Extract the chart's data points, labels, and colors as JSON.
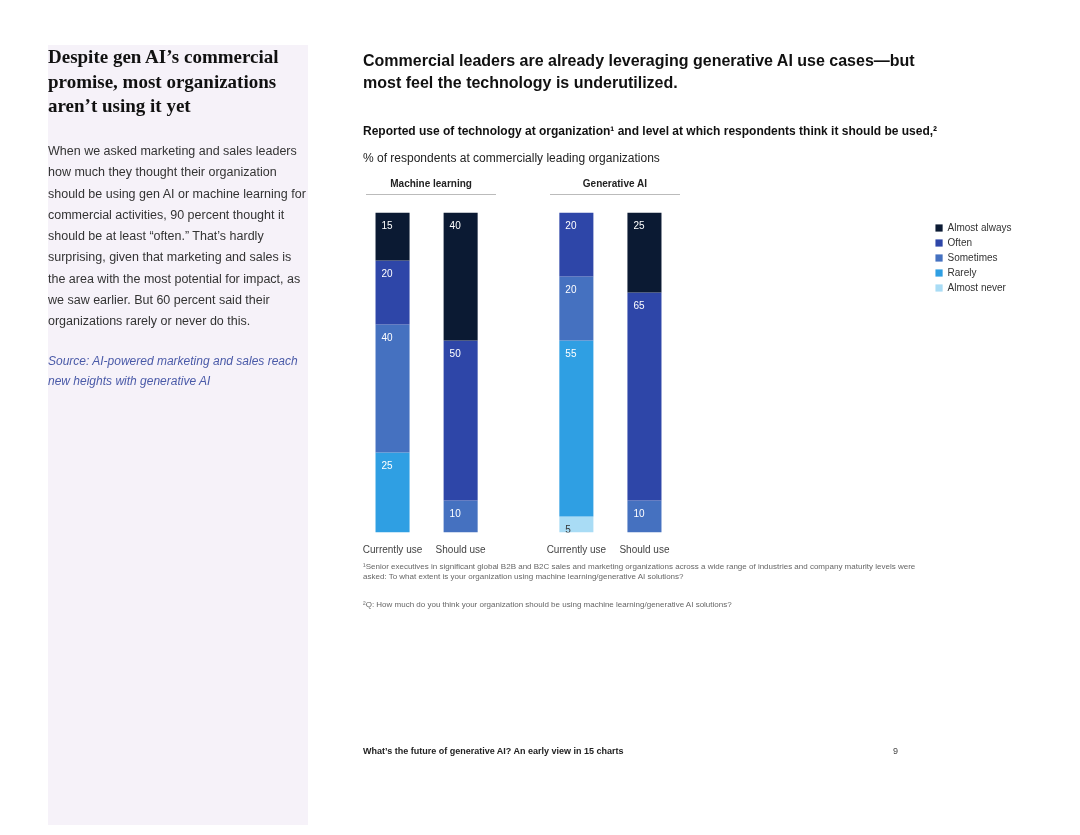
{
  "chart_data": [
    {
      "type": "other",
      "title": "Despite gen AI’s commercial promise, most organizations aren’t using it yet",
      "annotations": [
        "When we asked marketing and sales leaders how much they thought their organization should be using gen AI or machine learning for commercial activities, 90 percent thought it should be at least “often.” That’s hardly surprising, given that marketing and sales is the area with the most potential for impact, as we saw earlier. But 60 percent said their organizations rarely or never do this.",
        "Source: AI-powered marketing and sales reach new heights with generative AI"
      ]
    },
    {
      "type": "bar",
      "title": "Commercial leaders are already leveraging generative AI use cases—but most feel the technology is underutilized.",
      "subtitle": "Reported use of technology at organization¹ and level at which respondents think it should be used,²",
      "stacked": true,
      "data_labels": true,
      "tick_labels": "x",
      "grid": false,
      "legend": "right",
      "categories": [
        "Currently use",
        "Should use",
        "Currently use",
        "Should use"
      ],
      "series": [
        {
          "name": "Almost never",
          "color": "#a9dcf5",
          "values": [
            null,
            null,
            5,
            null
          ]
        },
        {
          "name": "Rarely",
          "color": "#2f9fe3",
          "values": [
            25,
            null,
            55,
            null
          ]
        },
        {
          "name": "Sometimes",
          "color": "#4571c0",
          "values": [
            40,
            10,
            20,
            10
          ]
        },
        {
          "name": "Often",
          "color": "#2e46a8",
          "values": [
            20,
            50,
            20,
            65
          ]
        },
        {
          "name": "Almost always",
          "color": "#0b1a33",
          "values": [
            15,
            40,
            null,
            25
          ]
        }
      ],
      "annotations": [
        "% of respondents at commercially leading organizations",
        "Machine learning",
        "Generative AI",
        "¹Senior executives in significant global B2B and B2C sales and marketing organizations across a wide range of industries and company maturity levels were asked: To what extent is your organization using machine learning/generative AI solutions?",
        "²Q: How much do you think your organization should be using machine learning/generative AI solutions?",
        "What’s the future of generative AI? An early view in 15 charts",
        "9"
      ]
    }
  ]
}
